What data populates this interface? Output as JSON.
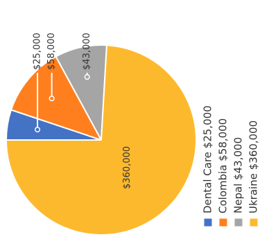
{
  "chart_data": {
    "type": "pie",
    "title": "",
    "slices": [
      {
        "label": "Dental Care",
        "value": 25000,
        "value_label": "$25,000",
        "legend_text": "Dental Care $25,000",
        "color": "#4472C4"
      },
      {
        "label": "Colombia",
        "value": 58000,
        "value_label": "$58,000",
        "legend_text": "Colombia $58,000",
        "color": "#FF7F1E"
      },
      {
        "label": "Nepal",
        "value": 43000,
        "value_label": "$43,000",
        "legend_text": "Nepal $43,000",
        "color": "#A5A5A5"
      },
      {
        "label": "Ukraine",
        "value": 360000,
        "value_label": "$360,000",
        "legend_text": "Ukraine $360,000",
        "color": "#FDB92D"
      }
    ],
    "legend_placement": "right",
    "text_orientation": "rotated-vertical"
  }
}
